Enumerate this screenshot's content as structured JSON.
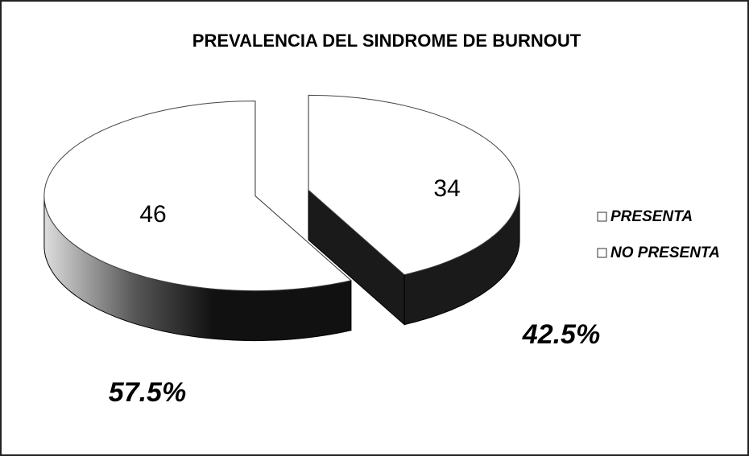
{
  "chart_data": {
    "type": "pie3d",
    "title": "PREVALENCIA DEL SINDROME DE BURNOUT",
    "categories": [
      "PRESENTA",
      "NO PRESENTA"
    ],
    "values": [
      34,
      46
    ],
    "percent_values": [
      42.5,
      57.5
    ],
    "percent_labels": [
      "42.5%",
      "57.5%"
    ],
    "colors": [
      "#ffffff",
      "#ffffff"
    ],
    "side_color": "#1a1a1a",
    "legend": "right"
  }
}
